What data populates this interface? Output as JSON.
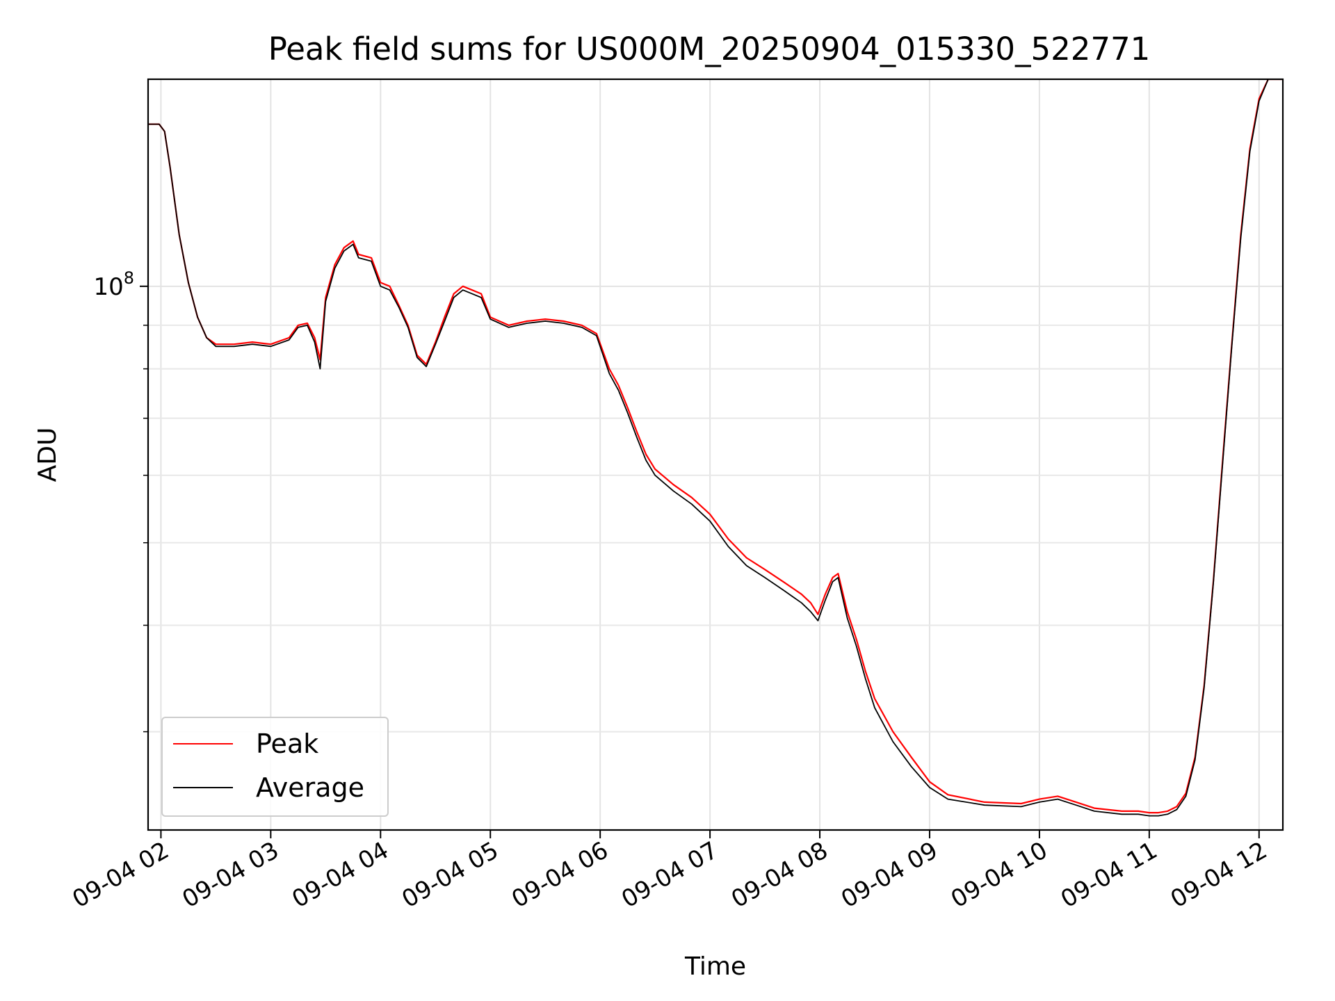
{
  "chart_data": {
    "type": "line",
    "title": "Peak field sums for US000M_20250904_015330_522771",
    "xlabel": "Time",
    "ylabel": "ADU",
    "yscale": "log",
    "ylim": [
      23000000,
      175000000
    ],
    "xlim": [
      "09-04 01:53",
      "09-04 12:13"
    ],
    "grid": true,
    "legend_location": "lower-left",
    "x_ticks": [
      "09-04 02",
      "09-04 03",
      "09-04 04",
      "09-04 05",
      "09-04 06",
      "09-04 07",
      "09-04 08",
      "09-04 09",
      "09-04 10",
      "09-04 11",
      "09-04 12"
    ],
    "y_major_ticks": [
      {
        "value": 100000000,
        "base": "10",
        "exponent": "8"
      }
    ],
    "y_minor_ticks": [
      30000000,
      40000000,
      50000000,
      60000000,
      70000000,
      80000000,
      90000000,
      200000000
    ],
    "series": [
      {
        "name": "Peak",
        "color": "#ff0000",
        "x": [
          "09-04 01:53",
          "09-04 01:59",
          "09-04 02:02",
          "09-04 02:05",
          "09-04 02:10",
          "09-04 02:15",
          "09-04 02:20",
          "09-04 02:25",
          "09-04 02:30",
          "09-04 02:40",
          "09-04 02:50",
          "09-04 03:00",
          "09-04 03:10",
          "09-04 03:15",
          "09-04 03:20",
          "09-04 03:24",
          "09-04 03:27",
          "09-04 03:30",
          "09-04 03:35",
          "09-04 03:40",
          "09-04 03:45",
          "09-04 03:48",
          "09-04 03:55",
          "09-04 04:00",
          "09-04 04:05",
          "09-04 04:10",
          "09-04 04:15",
          "09-04 04:20",
          "09-04 04:25",
          "09-04 04:30",
          "09-04 04:35",
          "09-04 04:40",
          "09-04 04:45",
          "09-04 04:50",
          "09-04 04:55",
          "09-04 05:00",
          "09-04 05:10",
          "09-04 05:20",
          "09-04 05:30",
          "09-04 05:40",
          "09-04 05:50",
          "09-04 05:58",
          "09-04 06:05",
          "09-04 06:10",
          "09-04 06:15",
          "09-04 06:20",
          "09-04 06:25",
          "09-04 06:30",
          "09-04 06:40",
          "09-04 06:50",
          "09-04 07:00",
          "09-04 07:10",
          "09-04 07:20",
          "09-04 07:30",
          "09-04 07:40",
          "09-04 07:50",
          "09-04 07:55",
          "09-04 07:59",
          "09-04 08:03",
          "09-04 08:07",
          "09-04 08:10",
          "09-04 08:15",
          "09-04 08:20",
          "09-04 08:25",
          "09-04 08:30",
          "09-04 08:40",
          "09-04 08:50",
          "09-04 09:00",
          "09-04 09:10",
          "09-04 09:30",
          "09-04 09:50",
          "09-04 10:00",
          "09-04 10:10",
          "09-04 10:20",
          "09-04 10:30",
          "09-04 10:45",
          "09-04 10:54",
          "09-04 11:00",
          "09-04 11:05",
          "09-04 11:10",
          "09-04 11:15",
          "09-04 11:20",
          "09-04 11:25",
          "09-04 11:30",
          "09-04 11:35",
          "09-04 11:40",
          "09-04 11:45",
          "09-04 11:50",
          "09-04 11:55",
          "09-04 12:00",
          "09-04 12:05",
          "09-04 12:13"
        ],
        "y": [
          155000000,
          155000000,
          152000000,
          138000000,
          115000000,
          101000000,
          92000000,
          87000000,
          85500000,
          85500000,
          86000000,
          85500000,
          87000000,
          90000000,
          90500000,
          87000000,
          82000000,
          97000000,
          106000000,
          111000000,
          113000000,
          109000000,
          108000000,
          101000000,
          100000000,
          95000000,
          90000000,
          83000000,
          81000000,
          86000000,
          92000000,
          98000000,
          100000000,
          99000000,
          98000000,
          92000000,
          90000000,
          91000000,
          91500000,
          91000000,
          90000000,
          88000000,
          80000000,
          76500000,
          72000000,
          67500000,
          63500000,
          61000000,
          58500000,
          56500000,
          54000000,
          50500000,
          48000000,
          46500000,
          45000000,
          43500000,
          42500000,
          41200000,
          43500000,
          45500000,
          46000000,
          41500000,
          38500000,
          35300000,
          32800000,
          30000000,
          28000000,
          26200000,
          25300000,
          24800000,
          24700000,
          25000000,
          25200000,
          24800000,
          24400000,
          24200000,
          24200000,
          24100000,
          24100000,
          24200000,
          24500000,
          25400000,
          28000000,
          34000000,
          45000000,
          62000000,
          85000000,
          115000000,
          145000000,
          166000000,
          175000000,
          175000000
        ]
      },
      {
        "name": "Average",
        "color": "#000000",
        "x": [
          "09-04 01:53",
          "09-04 01:59",
          "09-04 02:02",
          "09-04 02:05",
          "09-04 02:10",
          "09-04 02:15",
          "09-04 02:20",
          "09-04 02:25",
          "09-04 02:30",
          "09-04 02:40",
          "09-04 02:50",
          "09-04 03:00",
          "09-04 03:10",
          "09-04 03:15",
          "09-04 03:20",
          "09-04 03:24",
          "09-04 03:27",
          "09-04 03:30",
          "09-04 03:35",
          "09-04 03:40",
          "09-04 03:45",
          "09-04 03:48",
          "09-04 03:55",
          "09-04 04:00",
          "09-04 04:05",
          "09-04 04:10",
          "09-04 04:15",
          "09-04 04:20",
          "09-04 04:25",
          "09-04 04:30",
          "09-04 04:35",
          "09-04 04:40",
          "09-04 04:45",
          "09-04 04:50",
          "09-04 04:55",
          "09-04 05:00",
          "09-04 05:10",
          "09-04 05:20",
          "09-04 05:30",
          "09-04 05:40",
          "09-04 05:50",
          "09-04 05:58",
          "09-04 06:05",
          "09-04 06:10",
          "09-04 06:15",
          "09-04 06:20",
          "09-04 06:25",
          "09-04 06:30",
          "09-04 06:40",
          "09-04 06:50",
          "09-04 07:00",
          "09-04 07:10",
          "09-04 07:20",
          "09-04 07:30",
          "09-04 07:40",
          "09-04 07:50",
          "09-04 07:55",
          "09-04 07:59",
          "09-04 08:03",
          "09-04 08:07",
          "09-04 08:10",
          "09-04 08:15",
          "09-04 08:20",
          "09-04 08:25",
          "09-04 08:30",
          "09-04 08:40",
          "09-04 08:50",
          "09-04 09:00",
          "09-04 09:10",
          "09-04 09:30",
          "09-04 09:50",
          "09-04 10:00",
          "09-04 10:10",
          "09-04 10:20",
          "09-04 10:30",
          "09-04 10:45",
          "09-04 10:54",
          "09-04 11:00",
          "09-04 11:05",
          "09-04 11:10",
          "09-04 11:15",
          "09-04 11:20",
          "09-04 11:25",
          "09-04 11:30",
          "09-04 11:35",
          "09-04 11:40",
          "09-04 11:45",
          "09-04 11:50",
          "09-04 11:55",
          "09-04 12:00",
          "09-04 12:05",
          "09-04 12:13"
        ],
        "y": [
          155000000,
          155000000,
          152000000,
          138000000,
          115000000,
          101000000,
          92000000,
          87000000,
          85000000,
          85000000,
          85500000,
          85000000,
          86500000,
          89500000,
          90000000,
          86000000,
          80000000,
          96000000,
          105000000,
          110000000,
          112000000,
          108000000,
          107000000,
          100000000,
          99000000,
          94500000,
          89500000,
          82500000,
          80500000,
          85500000,
          91000000,
          97000000,
          99000000,
          98000000,
          97000000,
          91500000,
          89500000,
          90500000,
          91000000,
          90500000,
          89500000,
          87500000,
          79000000,
          75500000,
          71000000,
          66500000,
          62500000,
          60000000,
          57500000,
          55500000,
          53000000,
          49500000,
          47000000,
          45500000,
          44000000,
          42500000,
          41500000,
          40500000,
          42800000,
          45000000,
          45500000,
          40800000,
          37800000,
          34600000,
          32000000,
          29200000,
          27300000,
          25800000,
          25000000,
          24600000,
          24500000,
          24800000,
          25000000,
          24600000,
          24200000,
          24000000,
          24000000,
          23900000,
          23900000,
          24000000,
          24300000,
          25200000,
          27800000,
          33800000,
          44800000,
          61500000,
          84500000,
          114000000,
          144000000,
          165000000,
          175000000,
          175000000
        ]
      }
    ]
  }
}
